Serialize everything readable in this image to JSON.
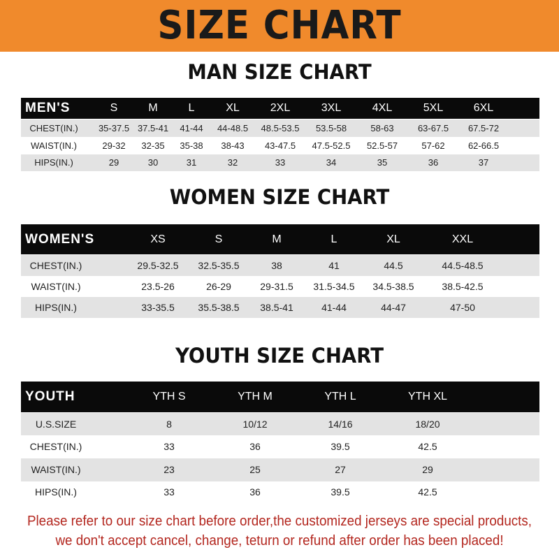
{
  "title": "SIZE CHART",
  "colors": {
    "banner": "#f08a2c",
    "header_row": "#0a0a0a",
    "footer_text": "#b3261e"
  },
  "tables": [
    {
      "title": "MAN SIZE CHART",
      "header": "MEN'S",
      "columns": [
        "S",
        "M",
        "L",
        "XL",
        "2XL",
        "3XL",
        "4XL",
        "5XL",
        "6XL"
      ],
      "rows": [
        {
          "label": "CHEST(IN.)",
          "values": [
            "35-37.5",
            "37.5-41",
            "41-44",
            "44-48.5",
            "48.5-53.5",
            "53.5-58",
            "58-63",
            "63-67.5",
            "67.5-72"
          ]
        },
        {
          "label": "WAIST(IN.)",
          "values": [
            "29-32",
            "32-35",
            "35-38",
            "38-43",
            "43-47.5",
            "47.5-52.5",
            "52.5-57",
            "57-62",
            "62-66.5"
          ]
        },
        {
          "label": "HIPS(IN.)",
          "values": [
            "29",
            "30",
            "31",
            "32",
            "33",
            "34",
            "35",
            "36",
            "37"
          ]
        }
      ]
    },
    {
      "title": "WOMEN SIZE CHART",
      "header": "WOMEN'S",
      "columns": [
        "XS",
        "S",
        "M",
        "L",
        "XL",
        "XXL"
      ],
      "rows": [
        {
          "label": "CHEST(IN.)",
          "values": [
            "29.5-32.5",
            "32.5-35.5",
            "38",
            "41",
            "44.5",
            "44.5-48.5"
          ]
        },
        {
          "label": "WAIST(IN.)",
          "values": [
            "23.5-26",
            "26-29",
            "29-31.5",
            "31.5-34.5",
            "34.5-38.5",
            "38.5-42.5"
          ]
        },
        {
          "label": "HIPS(IN.)",
          "values": [
            "33-35.5",
            "35.5-38.5",
            "38.5-41",
            "41-44",
            "44-47",
            "47-50"
          ]
        }
      ]
    },
    {
      "title": "YOUTH SIZE CHART",
      "header": "YOUTH",
      "columns": [
        "YTH S",
        "YTH M",
        "YTH L",
        "YTH XL"
      ],
      "rows": [
        {
          "label": "U.S.SIZE",
          "values": [
            "8",
            "10/12",
            "14/16",
            "18/20"
          ]
        },
        {
          "label": "CHEST(IN.)",
          "values": [
            "33",
            "36",
            "39.5",
            "42.5"
          ]
        },
        {
          "label": "WAIST(IN.)",
          "values": [
            "23",
            "25",
            "27",
            "29"
          ]
        },
        {
          "label": "HIPS(IN.)",
          "values": [
            "33",
            "36",
            "39.5",
            "42.5"
          ]
        }
      ]
    }
  ],
  "footer": {
    "line1": "Please refer to our size chart before order,the customized jerseys are special products,",
    "line2": "we don't accept cancel, change, teturn or refund after order has been placed!"
  }
}
